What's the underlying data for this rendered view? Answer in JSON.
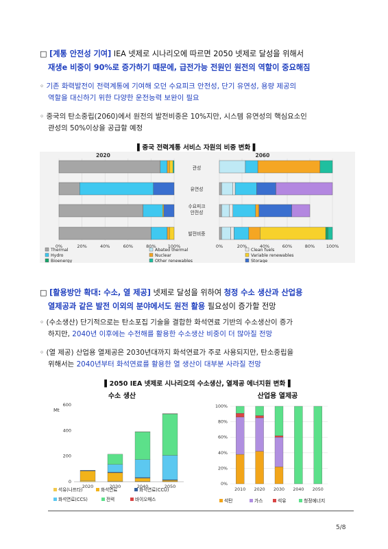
{
  "section1": {
    "marker": "□",
    "bracket": "[계통 안전성 기여]",
    "line1_rest": "IEA 넷제로 시나리오에 따르면 2050 넷제로 달성을 위해서",
    "line2": "재생e 비중이 90%로 증가하기 때문에, 급전가능 전원인 원전의 역할이 중요해짐",
    "bullet1_l1": "기존 화력발전이 전력계통에 기여해 오던 수요피크 안전성, 단기 유연성, 용량 제공의",
    "bullet1_l2": "역할을 대신하기 위한 다양한 운전능력 보완이 필요",
    "bullet2_l1": "중국의 탄소중립(2060)에서 원전의 발전비중은 10%지만, 시스템 유연성의 핵심요소인",
    "bullet2_l2": "관성의 50%이상을 공급할 예정",
    "fig_caption": "▌중국 전력계통 서비스 자원의 비중 변화 ▌"
  },
  "section2": {
    "marker": "□",
    "bracket": "[활용방안 확대: 수소, 열 제공]",
    "line1_mid": "넷제로 달성을 위하여",
    "line1_blue": "청정 수소 생산과 산업용",
    "line2_blue": "열제공과 같은 발전 이외의 분야에서도 원전 활용",
    "line2_rest": "필요성이 증가할 전망",
    "bullet1_l1": "(수소생산) 단기적으로는 탄소포집 기술을 결합한 화석연료 기반의 수소생산이 증가",
    "bullet1_l2a": "하지만,",
    "bullet1_l2b": "2040년 이후에는 수전해를 활용한 수소생산 비중이 더 많아질 전망",
    "bullet2_l1": "(열 제공) 산업용 열제공은 2030년대까지 화석연료가 주로 사용되지만, 탄소중립을",
    "bullet2_l2a": "위해서는",
    "bullet2_l2b": "2040년부터 화석연료를 활용한 열 생산이 대부분 사라질 전망",
    "fig_caption": "▌2050 IEA 넷제로 시나리오의 수소생산, 열제공 에너지원 변화▐"
  },
  "bullet_char": "◦",
  "page_number": "5/8",
  "chart_data": [
    {
      "type": "bar",
      "orientation": "horizontal-stacked",
      "title": "2020",
      "categories": [
        "관성",
        "유연성",
        "수요피크 안전성",
        "발전비중"
      ],
      "xlim": [
        0,
        100
      ],
      "x_ticks": [
        "0%",
        "20%",
        "40%",
        "60%",
        "80%",
        "100%"
      ],
      "series": [
        {
          "name": "Thermal",
          "color": "#a6a6a6",
          "values": [
            88,
            18,
            73,
            80
          ]
        },
        {
          "name": "Abated thermal",
          "color": "#bfe9f5",
          "values": [
            0,
            0,
            0,
            0
          ]
        },
        {
          "name": "Clean fuels",
          "color": "#e8e8e8",
          "values": [
            0,
            0,
            0,
            0
          ]
        },
        {
          "name": "Hydro",
          "color": "#3fc8f0",
          "values": [
            6,
            64,
            17,
            14
          ]
        },
        {
          "name": "Nuclear",
          "color": "#f5a623",
          "values": [
            2,
            0,
            0,
            2
          ]
        },
        {
          "name": "Variable renewables",
          "color": "#f7d12b",
          "values": [
            3,
            0,
            1,
            4
          ]
        },
        {
          "name": "Bioenergy",
          "color": "#17a56b",
          "values": [
            0,
            0,
            0,
            0
          ]
        },
        {
          "name": "Other renewables",
          "color": "#1fbf9f",
          "values": [
            1,
            0,
            0,
            0
          ]
        },
        {
          "name": "Storage",
          "color": "#3a6fcf",
          "values": [
            0,
            18,
            9,
            0
          ]
        },
        {
          "name": "Demand response",
          "color": "#b387e0",
          "values": [
            0,
            0,
            0,
            0
          ]
        }
      ]
    },
    {
      "type": "bar",
      "orientation": "horizontal-stacked",
      "title": "2060",
      "categories": [
        "관성",
        "유연성",
        "수요피크 안전성",
        "발전비중"
      ],
      "xlim": [
        0,
        100
      ],
      "x_ticks": [
        "0%",
        "20%",
        "40%",
        "60%",
        "80%",
        "100%"
      ],
      "series": [
        {
          "name": "Thermal",
          "color": "#a6a6a6",
          "values": [
            0,
            2,
            2,
            2
          ]
        },
        {
          "name": "Abated thermal",
          "color": "#bfe9f5",
          "values": [
            23,
            10,
            7,
            8
          ]
        },
        {
          "name": "Clean fuels",
          "color": "#e8e8e8",
          "values": [
            0,
            2,
            3,
            3
          ]
        },
        {
          "name": "Hydro",
          "color": "#3fc8f0",
          "values": [
            11,
            19,
            20,
            13
          ]
        },
        {
          "name": "Nuclear",
          "color": "#f5a623",
          "values": [
            55,
            0,
            3,
            10
          ]
        },
        {
          "name": "Variable renewables",
          "color": "#f7d12b",
          "values": [
            0,
            0,
            0,
            58
          ]
        },
        {
          "name": "Bioenergy",
          "color": "#17a56b",
          "values": [
            0,
            0,
            0,
            2
          ]
        },
        {
          "name": "Other renewables",
          "color": "#1fbf9f",
          "values": [
            11,
            0,
            0,
            4
          ]
        },
        {
          "name": "Storage",
          "color": "#3a6fcf",
          "values": [
            0,
            17,
            29,
            0
          ]
        },
        {
          "name": "Demand response",
          "color": "#b387e0",
          "values": [
            0,
            50,
            16,
            0
          ]
        }
      ]
    },
    {
      "type": "bar",
      "orientation": "vertical-stacked",
      "title": "수소 생산",
      "ylabel": "Mt",
      "categories": [
        "2020",
        "2030",
        "2040",
        "2050"
      ],
      "ylim": [
        0,
        600
      ],
      "y_ticks": [
        "0",
        "200",
        "400",
        "600"
      ],
      "series": [
        {
          "name": "석유(나프타)",
          "color": "#f2c94c",
          "values": [
            10,
            5,
            3,
            1
          ]
        },
        {
          "name": "화석연료",
          "color": "#f2b31a",
          "values": [
            75,
            65,
            25,
            10
          ]
        },
        {
          "name": "화석연료(CCU)",
          "color": "#34609c",
          "values": [
            5,
            5,
            5,
            5
          ]
        },
        {
          "name": "화석연료(CCS)",
          "color": "#5cc8f0",
          "values": [
            0,
            60,
            140,
            190
          ]
        },
        {
          "name": "전력",
          "color": "#5ce08a",
          "values": [
            0,
            80,
            217,
            324
          ]
        },
        {
          "name": "바이오매스",
          "color": "#d94444",
          "values": [
            0,
            0,
            1,
            2
          ]
        }
      ]
    },
    {
      "type": "bar",
      "orientation": "vertical-stacked-100",
      "title": "산업용 열제공",
      "categories": [
        "2010",
        "2020",
        "2030",
        "2040",
        "2050"
      ],
      "ylim": [
        0,
        100
      ],
      "y_ticks": [
        "0%",
        "20%",
        "40%",
        "60%",
        "80%",
        "100%"
      ],
      "series": [
        {
          "name": "석탄",
          "color": "#f2a51a",
          "values": [
            38,
            42,
            22,
            0,
            0
          ]
        },
        {
          "name": "가스",
          "color": "#b08fe0",
          "values": [
            48,
            43,
            38,
            0,
            0
          ]
        },
        {
          "name": "석유",
          "color": "#d94444",
          "values": [
            5,
            3,
            2,
            0,
            0
          ]
        },
        {
          "name": "청정에너지",
          "color": "#5ce08a",
          "values": [
            9,
            12,
            38,
            100,
            100
          ]
        }
      ]
    }
  ]
}
